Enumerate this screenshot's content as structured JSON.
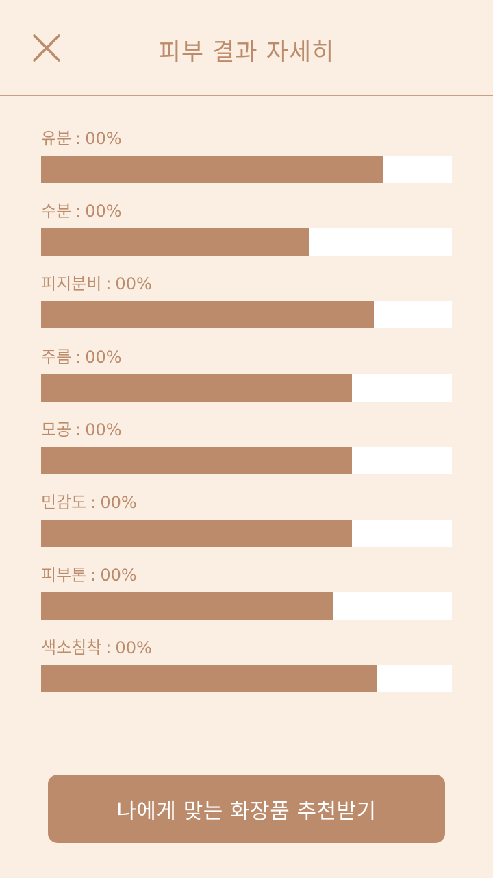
{
  "header": {
    "title": "피부 결과 자세히",
    "close_icon": "close-icon"
  },
  "colors": {
    "background": "#fbefe3",
    "accent": "#bc8b6b",
    "track": "#ffffff"
  },
  "metrics": [
    {
      "name": "유분",
      "value_text": "00%",
      "level": 0.833
    },
    {
      "name": "수분",
      "value_text": "00%",
      "level": 0.652
    },
    {
      "name": "피지분비",
      "value_text": "00%",
      "level": 0.81
    },
    {
      "name": "주름",
      "value_text": "00%",
      "level": 0.757
    },
    {
      "name": "모공",
      "value_text": "00%",
      "level": 0.757
    },
    {
      "name": "민감도",
      "value_text": "00%",
      "level": 0.757
    },
    {
      "name": "피부톤",
      "value_text": "00%",
      "level": 0.71
    },
    {
      "name": "색소침착",
      "value_text": "00%",
      "level": 0.819
    }
  ],
  "separator": ":",
  "cta": {
    "label": "나에게 맞는 화장품 추천받기"
  }
}
